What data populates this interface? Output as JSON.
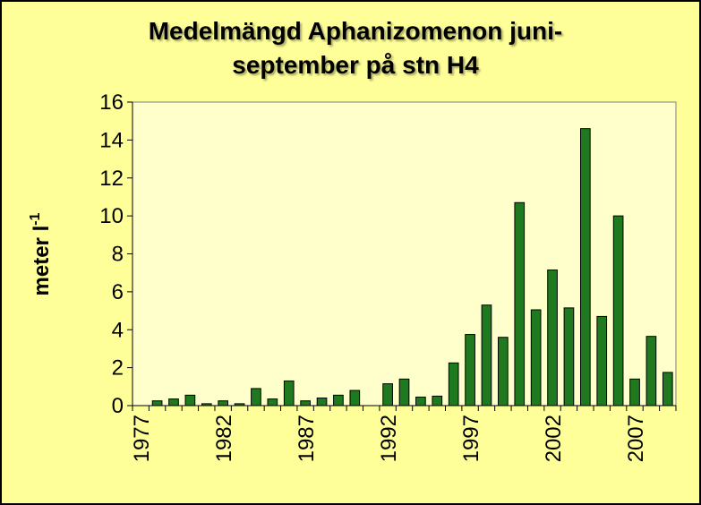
{
  "chart_data": {
    "type": "bar",
    "title": "Medelmängd Aphanizomenon juni-september på stn H4",
    "title_lines": [
      "Medelmängd Aphanizomenon juni-",
      "september på stn H4"
    ],
    "xlabel": "",
    "ylabel": "meter l",
    "ylabel_superscript": "-1",
    "ylim": [
      0,
      16
    ],
    "yticks": [
      0,
      2,
      4,
      6,
      8,
      10,
      12,
      14,
      16
    ],
    "xlim": [
      1977,
      2010
    ],
    "xtick_labels": [
      "1977",
      "1982",
      "1987",
      "1992",
      "1997",
      "2002",
      "2007"
    ],
    "grid": false,
    "legend": "none",
    "colors": {
      "bar": "#1F7A1F",
      "bar_edge": "#000000",
      "plot_background": "#FFFFCC",
      "chart_background": "#FFFF99"
    },
    "categories": [
      "1977",
      "1978",
      "1979",
      "1980",
      "1981",
      "1982",
      "1983",
      "1984",
      "1985",
      "1986",
      "1987",
      "1988",
      "1989",
      "1990",
      "1991",
      "1992",
      "1993",
      "1994",
      "1995",
      "1996",
      "1997",
      "1998",
      "1999",
      "2000",
      "2001",
      "2002",
      "2003",
      "2004",
      "2005",
      "2006",
      "2007",
      "2008",
      "2009"
    ],
    "values": [
      null,
      0.25,
      0.35,
      0.55,
      0.1,
      0.25,
      0.1,
      0.9,
      0.35,
      1.3,
      0.25,
      0.4,
      0.55,
      0.8,
      null,
      1.15,
      1.4,
      0.45,
      0.5,
      2.25,
      3.75,
      5.3,
      3.6,
      10.7,
      5.05,
      7.15,
      5.15,
      14.6,
      4.7,
      10.0,
      1.4,
      3.65,
      1.75
    ]
  }
}
